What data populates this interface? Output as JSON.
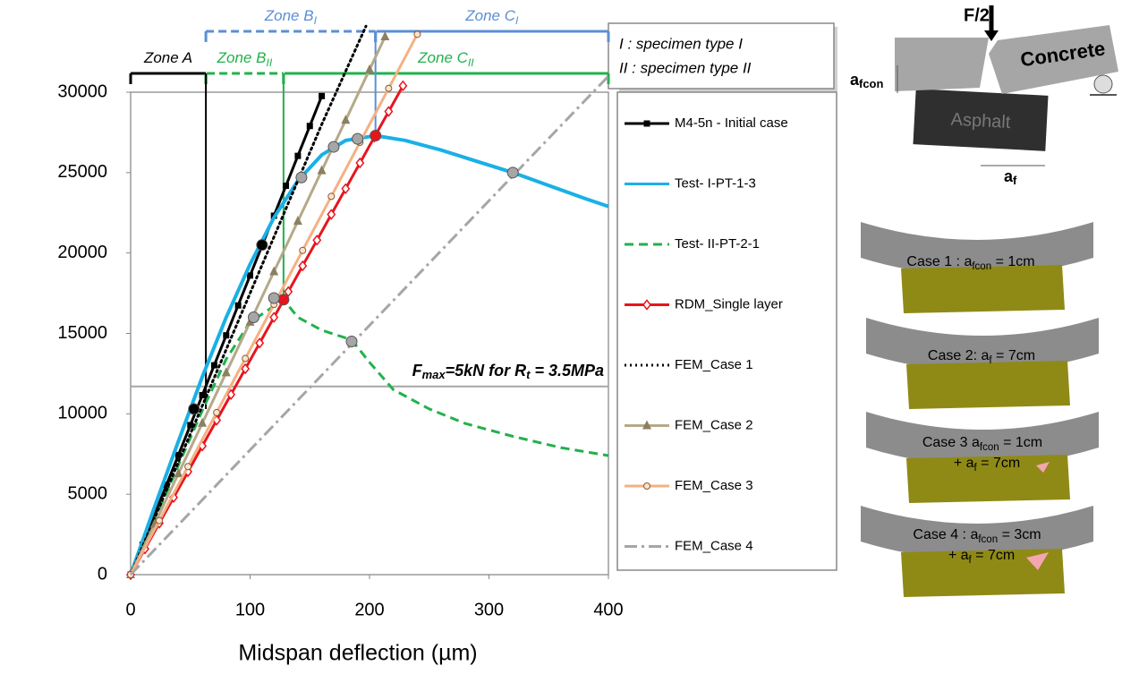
{
  "chart_data": {
    "type": "line",
    "xlabel": "Midspan deflection (µm)",
    "xlim": [
      0,
      400
    ],
    "ylim": [
      0,
      30000
    ],
    "xticks": [
      0,
      100,
      200,
      300,
      400
    ],
    "yticks": [
      0,
      5000,
      10000,
      15000,
      20000,
      25000,
      30000
    ],
    "grid": false,
    "legend_position": "right",
    "series": [
      {
        "name": "M4-5n - Initial case",
        "color": "#000000",
        "dash": "solid",
        "marker": "square",
        "x": [
          0,
          10,
          20,
          30,
          40,
          50,
          60,
          70,
          80,
          90,
          100,
          110,
          120,
          130,
          140,
          150,
          160
        ],
        "values": [
          0,
          1860,
          3720,
          5580,
          7440,
          9300,
          11160,
          13020,
          14880,
          16740,
          18600,
          20460,
          22320,
          24180,
          26040,
          27900,
          29760
        ]
      },
      {
        "name": "Test- I-PT-1-3",
        "color": "#1ab0e6",
        "dash": "solid",
        "marker": "none",
        "x": [
          0,
          20,
          40,
          60,
          80,
          100,
          120,
          140,
          160,
          180,
          205,
          230,
          260,
          290,
          320,
          350,
          380,
          400
        ],
        "values": [
          0,
          4200,
          8300,
          12300,
          16000,
          19300,
          22200,
          24500,
          26100,
          27000,
          27300,
          27000,
          26400,
          25700,
          25000,
          24200,
          23400,
          22900
        ]
      },
      {
        "name": "Test- II-PT-2-1",
        "color": "#22b14c",
        "dash": "dashed",
        "marker": "none",
        "x": [
          0,
          20,
          40,
          60,
          80,
          100,
          128,
          140,
          160,
          185,
          200,
          220,
          250,
          280,
          320,
          360,
          400
        ],
        "values": [
          0,
          3400,
          6800,
          10200,
          13400,
          15700,
          17100,
          16000,
          15200,
          14600,
          13200,
          11500,
          10300,
          9400,
          8600,
          7900,
          7400
        ]
      },
      {
        "name": "RDM_Single layer",
        "color": "#e8141c",
        "dash": "solid",
        "marker": "diamond",
        "x": [
          0,
          12,
          24,
          36,
          48,
          60,
          72,
          84,
          96,
          108,
          120,
          132,
          144,
          156,
          168,
          180,
          192,
          204,
          216,
          228
        ],
        "values": [
          0,
          1600,
          3200,
          4800,
          6400,
          8000,
          9600,
          11200,
          12800,
          14400,
          16000,
          17600,
          19200,
          20800,
          22400,
          24000,
          25600,
          27200,
          28800,
          30400
        ]
      },
      {
        "name": "FEM_Case 1",
        "color": "#000000",
        "dash": "dotted",
        "marker": "none",
        "x": [
          0,
          40,
          80,
          120,
          160,
          197
        ],
        "values": [
          0,
          7000,
          14000,
          21000,
          28000,
          34100
        ]
      },
      {
        "name": "FEM_Case 2",
        "color": "#b5a98a",
        "dash": "solid",
        "marker": "triangle",
        "x": [
          0,
          20,
          40,
          60,
          80,
          100,
          120,
          140,
          160,
          180,
          200,
          213
        ],
        "values": [
          0,
          3140,
          6280,
          9420,
          12560,
          15700,
          18840,
          21980,
          25120,
          28260,
          31400,
          33450
        ]
      },
      {
        "name": "FEM_Case 3",
        "color": "#f4b183",
        "dash": "solid",
        "marker": "circle",
        "x": [
          0,
          24,
          48,
          72,
          96,
          120,
          144,
          168,
          192,
          216,
          240
        ],
        "values": [
          0,
          3360,
          6720,
          10080,
          13440,
          16800,
          20160,
          23520,
          26880,
          30240,
          33600
        ]
      },
      {
        "name": "FEM_Case 4",
        "color": "#a6a6a6",
        "dash": "dashdot",
        "marker": "none",
        "x": [
          0,
          400
        ],
        "values": [
          0,
          31000
        ]
      }
    ],
    "points": [
      {
        "x": 53,
        "y": 10300,
        "color": "#000000"
      },
      {
        "x": 110,
        "y": 20500,
        "color": "#000000"
      },
      {
        "x": 205,
        "y": 27300,
        "color": "#e8141c"
      },
      {
        "x": 128,
        "y": 17100,
        "color": "#e8141c"
      },
      {
        "x": 143,
        "y": 24700,
        "color": "#a6a6a6"
      },
      {
        "x": 320,
        "y": 25000,
        "color": "#a6a6a6"
      },
      {
        "x": 120,
        "y": 17200,
        "color": "#a6a6a6"
      },
      {
        "x": 170,
        "y": 26600,
        "color": "#a6a6a6"
      },
      {
        "x": 190,
        "y": 27100,
        "color": "#a6a6a6"
      },
      {
        "x": 185,
        "y": 14500,
        "color": "#a6a6a6"
      },
      {
        "x": 103,
        "y": 16000,
        "color": "#a6a6a6"
      }
    ],
    "reference_line": {
      "y": 11700,
      "color": "#a6a6a6",
      "label": [
        {
          "text": "F"
        },
        {
          "text": "max",
          "sub": true
        },
        {
          "text": "=5kN for R"
        },
        {
          "text": "t",
          "sub": true
        },
        {
          "text": " = 3.5MPa"
        }
      ]
    },
    "zone_rows": [
      {
        "zones": [
          {
            "label": [
              {
                "text": "Zone B"
              },
              {
                "text": "I",
                "sub": true
              }
            ],
            "start": 63,
            "end": 205,
            "color": "#5b8fd6",
            "dashed": true
          },
          {
            "label": [
              {
                "text": "Zone C"
              },
              {
                "text": "I",
                "sub": true
              }
            ],
            "start": 205,
            "end": 400,
            "color": "#5b8fd6",
            "dashed": false
          }
        ]
      },
      {
        "zones": [
          {
            "label": [
              {
                "text": "Zone A"
              }
            ],
            "start": 0,
            "end": 63,
            "color": "#000000",
            "dashed": false
          },
          {
            "label": [
              {
                "text": "Zone B"
              },
              {
                "text": "II",
                "sub": true
              }
            ],
            "start": 63,
            "end": 128,
            "color": "#22b14c",
            "dashed": true
          },
          {
            "label": [
              {
                "text": "Zone C"
              },
              {
                "text": "II",
                "sub": true
              }
            ],
            "start": 128,
            "end": 400,
            "color": "#22b14c",
            "dashed": false
          }
        ]
      }
    ],
    "boundaries": [
      {
        "x": 63,
        "y": 10300,
        "color": "#000000",
        "row": 1
      },
      {
        "x": 128,
        "y": 17100,
        "color": "#22b14c",
        "row": 1
      },
      {
        "x": 205,
        "y": 27300,
        "color": "#5b8fd6",
        "row": 0
      }
    ],
    "note": [
      "I : specimen type I",
      "II : specimen type II"
    ]
  },
  "diagram": {
    "force": "F/2",
    "top_layer": "Concrete",
    "bottom_layer": "Asphalt",
    "gap_label": [
      {
        "text": "a"
      },
      {
        "text": "fcon",
        "sub": true
      }
    ],
    "crack_label": [
      {
        "text": "a"
      },
      {
        "text": "f",
        "sub": true
      }
    ],
    "cases": [
      {
        "lines": [
          [
            {
              "text": "Case 1 : a"
            },
            {
              "text": "fcon",
              "sub": true
            },
            {
              "text": " = 1cm"
            }
          ]
        ]
      },
      {
        "lines": [
          [
            {
              "text": "Case 2: a"
            },
            {
              "text": "f",
              "sub": true
            },
            {
              "text": " = 7cm"
            }
          ]
        ]
      },
      {
        "lines": [
          [
            {
              "text": "Case 3 a"
            },
            {
              "text": "fcon",
              "sub": true
            },
            {
              "text": " = 1cm"
            }
          ],
          [
            {
              "text": "+ a"
            },
            {
              "text": "f",
              "sub": true
            },
            {
              "text": " = 7cm"
            }
          ]
        ]
      },
      {
        "lines": [
          [
            {
              "text": "Case 4 : a"
            },
            {
              "text": "fcon",
              "sub": true
            },
            {
              "text": " = 3cm"
            }
          ],
          [
            {
              "text": "+ a"
            },
            {
              "text": "f",
              "sub": true
            },
            {
              "text": " = 7cm"
            }
          ]
        ]
      }
    ]
  }
}
